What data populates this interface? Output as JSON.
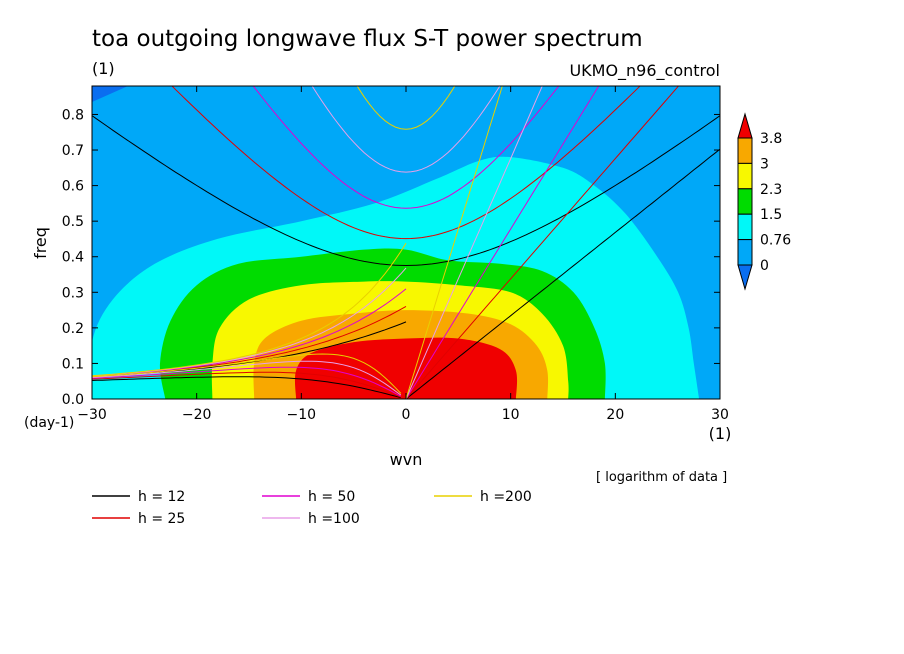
{
  "header": {
    "title": "toa outgoing longwave flux S-T power spectrum",
    "units": "(1)",
    "dataset": "UKMO_n96_control"
  },
  "chart_data": {
    "type": "heatmap",
    "title": "toa outgoing longwave flux S-T power spectrum",
    "xlabel": "wvn",
    "xunits": "(1)",
    "ylabel": "freq",
    "yunits": "(day-1)",
    "xlim": [
      -30,
      30
    ],
    "ylim": [
      0,
      0.88
    ],
    "xticks": [
      -30,
      -20,
      -10,
      0,
      10,
      20,
      30
    ],
    "yticks": [
      0.0,
      0.1,
      0.2,
      0.3,
      0.4,
      0.5,
      0.6,
      0.7,
      0.8
    ],
    "note": "[ logarithm of data ]",
    "colorbar": {
      "levels": [
        0,
        0.76,
        1.5,
        2.3,
        3,
        3.8
      ],
      "labels": [
        "0",
        "0.76",
        "1.5",
        "2.3",
        "3",
        "3.8"
      ],
      "colors": [
        "#0a6ef0",
        "#00a8f8",
        "#00f8f8",
        "#00dc00",
        "#f8f800",
        "#f8a800",
        "#f00000"
      ]
    },
    "field_regions": [
      {
        "level": "0.76",
        "color": "#00f8f8",
        "points": [
          [
            -30,
            0
          ],
          [
            -30,
            0.16
          ],
          [
            -28,
            0.28
          ],
          [
            -24,
            0.38
          ],
          [
            -18,
            0.45
          ],
          [
            -10,
            0.5
          ],
          [
            -3,
            0.55
          ],
          [
            3,
            0.62
          ],
          [
            7,
            0.67
          ],
          [
            10,
            0.68
          ],
          [
            15,
            0.65
          ],
          [
            18,
            0.6
          ],
          [
            21,
            0.52
          ],
          [
            24,
            0.4
          ],
          [
            26,
            0.3
          ],
          [
            27,
            0.2
          ],
          [
            27.5,
            0.1
          ],
          [
            28,
            0
          ]
        ]
      },
      {
        "level": "1.5",
        "color": "#00dc00",
        "points": [
          [
            -23,
            0
          ],
          [
            -23.5,
            0.1
          ],
          [
            -22.5,
            0.22
          ],
          [
            -20,
            0.32
          ],
          [
            -16,
            0.38
          ],
          [
            -10,
            0.4
          ],
          [
            -4,
            0.42
          ],
          [
            0,
            0.42
          ],
          [
            4,
            0.39
          ],
          [
            9,
            0.38
          ],
          [
            13,
            0.36
          ],
          [
            16,
            0.3
          ],
          [
            18,
            0.2
          ],
          [
            19,
            0.1
          ],
          [
            19,
            0
          ]
        ]
      },
      {
        "level": "2.3",
        "color": "#f8f800",
        "points": [
          [
            -18.5,
            0
          ],
          [
            -18.5,
            0.1
          ],
          [
            -17.8,
            0.2
          ],
          [
            -15,
            0.28
          ],
          [
            -10,
            0.32
          ],
          [
            -4,
            0.33
          ],
          [
            0,
            0.33
          ],
          [
            5,
            0.32
          ],
          [
            10,
            0.3
          ],
          [
            13,
            0.24
          ],
          [
            15,
            0.15
          ],
          [
            15.5,
            0.05
          ],
          [
            15.5,
            0
          ]
        ]
      },
      {
        "level": "3",
        "color": "#f8a800",
        "points": [
          [
            -14.5,
            0
          ],
          [
            -14.5,
            0.1
          ],
          [
            -13.5,
            0.17
          ],
          [
            -10,
            0.22
          ],
          [
            -5,
            0.24
          ],
          [
            0,
            0.25
          ],
          [
            6,
            0.24
          ],
          [
            10,
            0.21
          ],
          [
            12.5,
            0.15
          ],
          [
            13.5,
            0.08
          ],
          [
            13.5,
            0
          ]
        ]
      },
      {
        "level": "3.8",
        "color": "#f00000",
        "points": [
          [
            -10.5,
            0
          ],
          [
            -10.5,
            0.08
          ],
          [
            -9,
            0.13
          ],
          [
            -5,
            0.16
          ],
          [
            0,
            0.17
          ],
          [
            5,
            0.17
          ],
          [
            9,
            0.14
          ],
          [
            10.5,
            0.08
          ],
          [
            10.5,
            0
          ]
        ]
      }
    ],
    "series": [
      {
        "name": "h = 12",
        "color": "#000000",
        "h": 12
      },
      {
        "name": "h = 25",
        "color": "#e00000",
        "h": 25
      },
      {
        "name": "h = 50",
        "color": "#e000d0",
        "h": 50
      },
      {
        "name": "h =100",
        "color": "#e8a0e8",
        "h": 100
      },
      {
        "name": "h =200",
        "color": "#e8d000",
        "h": 200
      }
    ],
    "legend_position": "bottom"
  }
}
